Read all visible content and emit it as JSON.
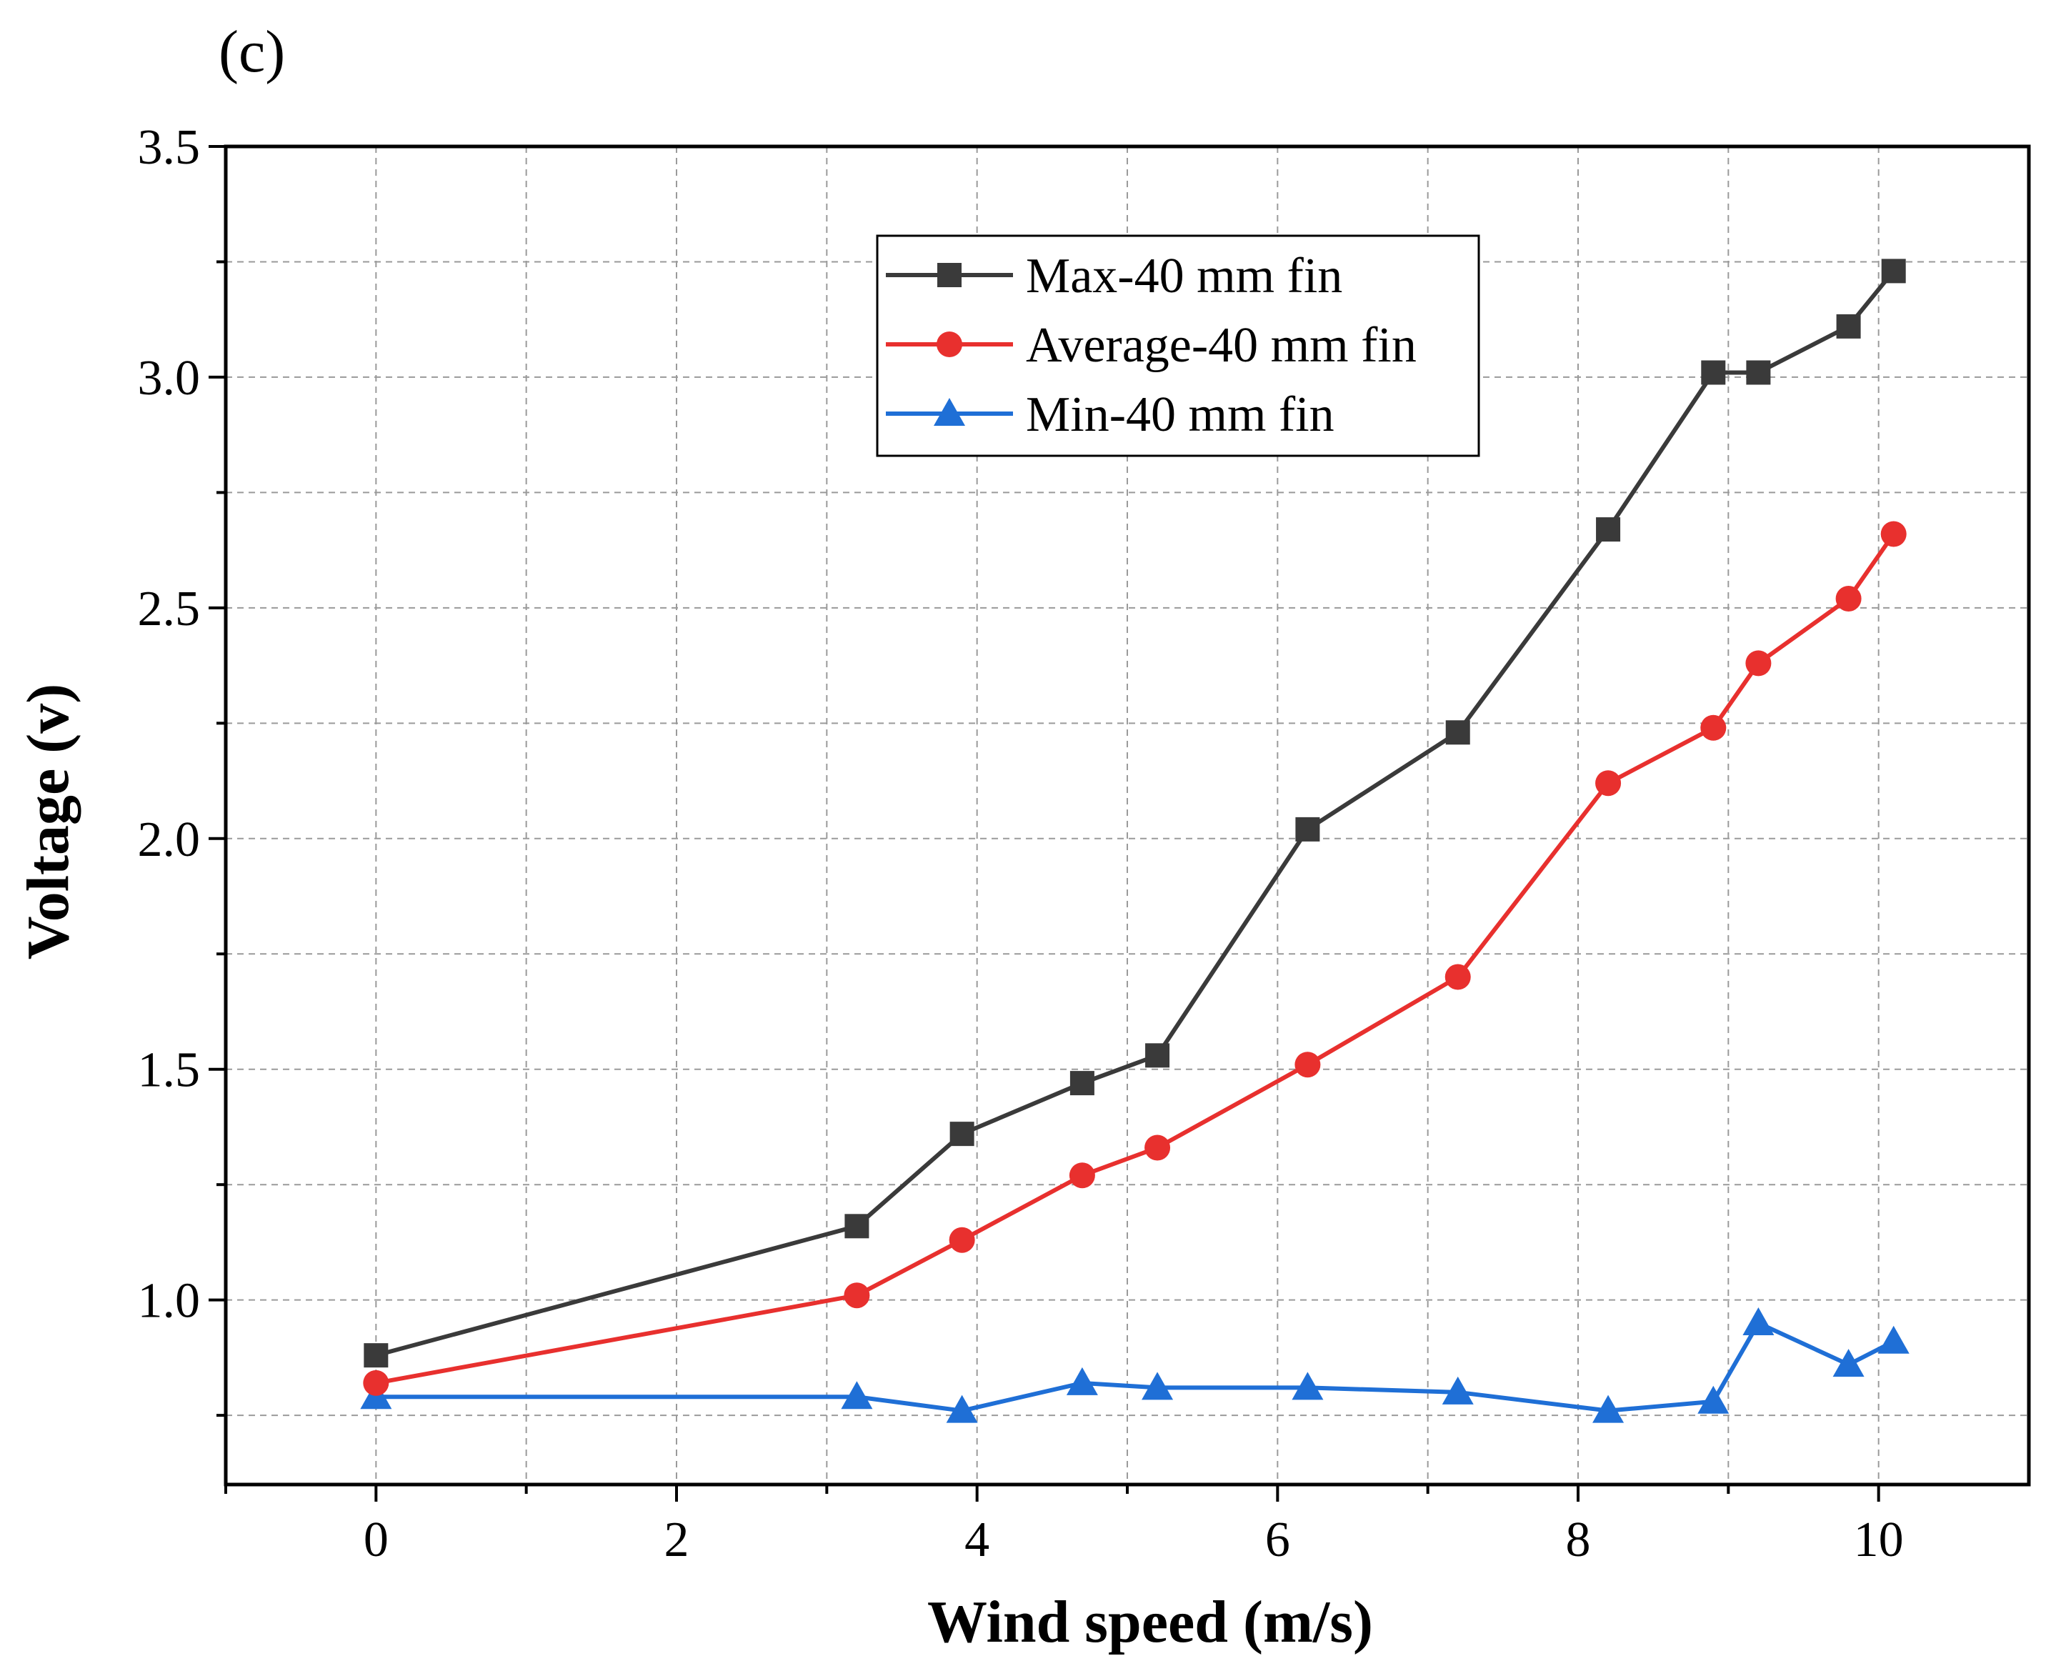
{
  "chart_data": {
    "type": "line",
    "panel_label": "(c)",
    "title": "",
    "xlabel": "Wind speed (m/s)",
    "ylabel": "Voltage (v)",
    "xlim": [
      -1,
      11
    ],
    "ylim": [
      0.6,
      3.5
    ],
    "xticks": [
      "0",
      "2",
      "4",
      "6",
      "8",
      "10"
    ],
    "yticks": [
      "1.0",
      "1.5",
      "2.0",
      "2.5",
      "3.0",
      "3.5"
    ],
    "grid": true,
    "legend_position": "top-center",
    "x": [
      0,
      3.2,
      3.9,
      4.7,
      5.2,
      6.2,
      7.2,
      8.2,
      8.9,
      9.2,
      9.8,
      10.1
    ],
    "series": [
      {
        "name": "Max-40 mm fin",
        "marker": "square",
        "color": "#3a3a3a",
        "values": [
          0.88,
          1.16,
          1.36,
          1.47,
          1.53,
          2.02,
          2.23,
          2.67,
          3.01,
          3.01,
          3.11,
          3.23
        ]
      },
      {
        "name": "Average-40 mm fin",
        "marker": "circle",
        "color": "#e8302e",
        "values": [
          0.82,
          1.01,
          1.13,
          1.27,
          1.33,
          1.51,
          1.7,
          2.12,
          2.24,
          2.38,
          2.52,
          2.66
        ]
      },
      {
        "name": "Min-40 mm fin",
        "marker": "triangle",
        "color": "#1f6fd6",
        "values": [
          0.79,
          0.79,
          0.76,
          0.82,
          0.81,
          0.81,
          0.8,
          0.76,
          0.78,
          0.95,
          0.86,
          0.91
        ]
      }
    ]
  }
}
